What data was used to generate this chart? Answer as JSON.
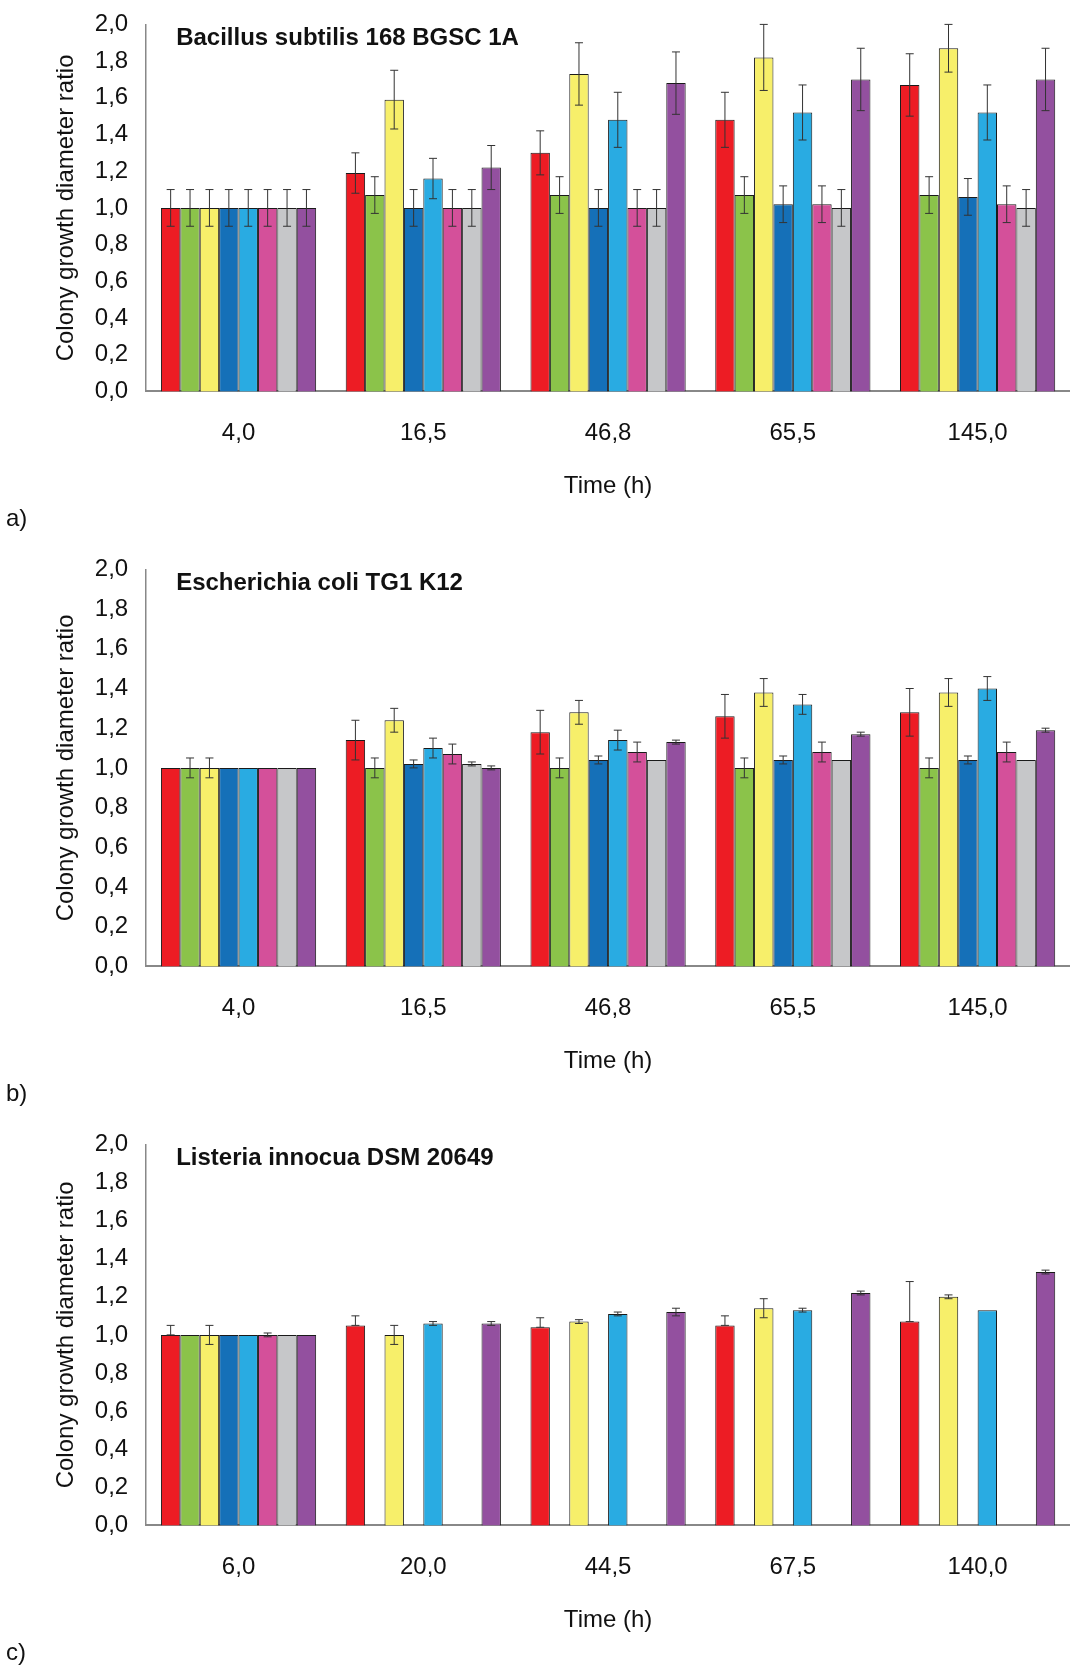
{
  "chart_data": [
    {
      "type": "bar",
      "title": "Bacillus subtilis 168 BGSC 1A",
      "xlabel": "Time (h)",
      "ylabel": "Colony growth diameter ratio",
      "annotations": [
        "a)"
      ],
      "categories": [
        "4,0",
        "16,5",
        "46,8",
        "65,5",
        "145,0"
      ],
      "ylim": [
        0,
        2
      ],
      "yticks": [
        {
          "value": 0,
          "label": "0,0"
        },
        {
          "value": 0.2,
          "label": "0,2"
        },
        {
          "value": 0.4,
          "label": "0,4"
        },
        {
          "value": 0.6,
          "label": "0,6"
        },
        {
          "value": 0.8,
          "label": "0,8"
        },
        {
          "value": 1,
          "label": "1,0"
        },
        {
          "value": 1.2,
          "label": "1,2"
        },
        {
          "value": 1.4,
          "label": "1,4"
        },
        {
          "value": 1.6,
          "label": "1,6"
        },
        {
          "value": 1.8,
          "label": "1,8"
        },
        {
          "value": 2,
          "label": "2,0"
        }
      ],
      "series": [
        {
          "color": "#ed1c24",
          "values": [
            1.0,
            1.19,
            1.3,
            1.48,
            1.67
          ],
          "errors": [
            0.1,
            0.11,
            0.12,
            0.15,
            0.17
          ]
        },
        {
          "color": "#8bc34a",
          "values": [
            1.0,
            1.07,
            1.07,
            1.07,
            1.07
          ],
          "errors": [
            0.1,
            0.1,
            0.1,
            0.1,
            0.1
          ]
        },
        {
          "color": "#f7ef6a",
          "values": [
            1.0,
            1.59,
            1.73,
            1.82,
            1.87
          ],
          "errors": [
            0.1,
            0.16,
            0.17,
            0.18,
            0.13
          ]
        },
        {
          "color": "#1570b8",
          "values": [
            1.0,
            1.0,
            1.0,
            1.02,
            1.06
          ],
          "errors": [
            0.1,
            0.1,
            0.1,
            0.1,
            0.1
          ]
        },
        {
          "color": "#29abe2",
          "values": [
            1.0,
            1.16,
            1.48,
            1.52,
            1.52
          ],
          "errors": [
            0.1,
            0.11,
            0.15,
            0.15,
            0.15
          ]
        },
        {
          "color": "#d4509a",
          "values": [
            1.0,
            1.0,
            1.0,
            1.02,
            1.02
          ],
          "errors": [
            0.1,
            0.1,
            0.1,
            0.1,
            0.1
          ]
        },
        {
          "color": "#c6c7c9",
          "values": [
            1.0,
            1.0,
            1.0,
            1.0,
            1.0
          ],
          "errors": [
            0.1,
            0.1,
            0.1,
            0.1,
            0.1
          ]
        },
        {
          "color": "#93509f",
          "values": [
            1.0,
            1.22,
            1.68,
            1.7,
            1.7
          ],
          "errors": [
            0.1,
            0.12,
            0.17,
            0.17,
            0.17
          ]
        }
      ]
    },
    {
      "type": "bar",
      "title": "Escherichia coli TG1 K12",
      "xlabel": "Time (h)",
      "ylabel": "Colony growth diameter ratio",
      "annotations": [
        "b)"
      ],
      "categories": [
        "4,0",
        "16,5",
        "46,8",
        "65,5",
        "145,0"
      ],
      "ylim": [
        0,
        2
      ],
      "yticks": [
        {
          "value": 0,
          "label": "0,0"
        },
        {
          "value": 0.2,
          "label": "0,2"
        },
        {
          "value": 0.4,
          "label": "0,4"
        },
        {
          "value": 0.6,
          "label": "0,6"
        },
        {
          "value": 0.8,
          "label": "0,8"
        },
        {
          "value": 1,
          "label": "1,0"
        },
        {
          "value": 1.2,
          "label": "1,2"
        },
        {
          "value": 1.4,
          "label": "1,4"
        },
        {
          "value": 1.6,
          "label": "1,6"
        },
        {
          "value": 1.8,
          "label": "1,8"
        },
        {
          "value": 2,
          "label": "2,0"
        }
      ],
      "series": [
        {
          "color": "#ed1c24",
          "values": [
            1.0,
            1.14,
            1.18,
            1.26,
            1.28
          ],
          "errors": [
            null,
            0.1,
            0.11,
            0.11,
            0.12
          ]
        },
        {
          "color": "#8bc34a",
          "values": [
            1.0,
            1.0,
            1.0,
            1.0,
            1.0
          ],
          "errors": [
            0.05,
            0.05,
            0.05,
            0.05,
            0.05
          ]
        },
        {
          "color": "#f7ef6a",
          "values": [
            1.0,
            1.24,
            1.28,
            1.38,
            1.38
          ],
          "errors": [
            0.05,
            0.06,
            0.06,
            0.07,
            0.07
          ]
        },
        {
          "color": "#1570b8",
          "values": [
            1.0,
            1.02,
            1.04,
            1.04,
            1.04
          ],
          "errors": [
            null,
            0.02,
            0.02,
            0.02,
            0.02
          ]
        },
        {
          "color": "#29abe2",
          "values": [
            1.0,
            1.1,
            1.14,
            1.32,
            1.4
          ],
          "errors": [
            null,
            0.05,
            0.05,
            0.05,
            0.06
          ]
        },
        {
          "color": "#d4509a",
          "values": [
            1.0,
            1.07,
            1.08,
            1.08,
            1.08
          ],
          "errors": [
            null,
            0.05,
            0.05,
            0.05,
            0.05
          ]
        },
        {
          "color": "#c6c7c9",
          "values": [
            1.0,
            1.02,
            1.04,
            1.04,
            1.04
          ],
          "errors": [
            null,
            0.01,
            null,
            null,
            null
          ]
        },
        {
          "color": "#93509f",
          "values": [
            1.0,
            1.0,
            1.13,
            1.17,
            1.19
          ],
          "errors": [
            null,
            0.01,
            0.01,
            0.01,
            0.01
          ]
        }
      ]
    },
    {
      "type": "bar",
      "title": "Listeria innocua DSM 20649",
      "xlabel": "Time (h)",
      "ylabel": "Colony growth diameter ratio",
      "annotations": [
        "c)"
      ],
      "categories": [
        "6,0",
        "20,0",
        "44,5",
        "67,5",
        "140,0"
      ],
      "ylim": [
        0,
        2
      ],
      "yticks": [
        {
          "value": 0,
          "label": "0,0"
        },
        {
          "value": 0.2,
          "label": "0,2"
        },
        {
          "value": 0.4,
          "label": "0,4"
        },
        {
          "value": 0.6,
          "label": "0,6"
        },
        {
          "value": 0.8,
          "label": "0,8"
        },
        {
          "value": 1,
          "label": "1,0"
        },
        {
          "value": 1.2,
          "label": "1,2"
        },
        {
          "value": 1.4,
          "label": "1,4"
        },
        {
          "value": 1.6,
          "label": "1,6"
        },
        {
          "value": 1.8,
          "label": "1,8"
        },
        {
          "value": 2,
          "label": "2,0"
        }
      ],
      "series": [
        {
          "color": "#ed1c24",
          "values": [
            1.0,
            1.05,
            1.04,
            1.05,
            1.07
          ],
          "errors": [
            [
              1.0,
              1.05
            ],
            [
              1.05,
              1.1
            ],
            [
              1.04,
              1.09
            ],
            [
              1.05,
              1.1
            ],
            [
              1.07,
              1.28
            ]
          ]
        },
        {
          "color": "#8bc34a",
          "values": [
            1.0,
            null,
            null,
            null,
            null
          ]
        },
        {
          "color": "#f7ef6a",
          "values": [
            1.0,
            1.0,
            1.07,
            1.14,
            1.2
          ],
          "errors": [
            0.05,
            0.05,
            0.01,
            0.05,
            0.01
          ]
        },
        {
          "color": "#1570b8",
          "values": [
            1.0,
            null,
            null,
            null,
            null
          ]
        },
        {
          "color": "#29abe2",
          "values": [
            1.0,
            1.06,
            1.11,
            1.13,
            1.13
          ],
          "errors": [
            null,
            0.01,
            0.01,
            0.01,
            null
          ]
        },
        {
          "color": "#d4509a",
          "values": [
            1.0,
            null,
            null,
            null,
            null
          ],
          "errors": [
            0.01,
            null,
            null,
            null,
            null
          ]
        },
        {
          "color": "#c6c7c9",
          "values": [
            1.0,
            null,
            null,
            null,
            null
          ]
        },
        {
          "color": "#93509f",
          "values": [
            1.0,
            1.06,
            1.12,
            1.22,
            1.33
          ],
          "errors": [
            null,
            0.01,
            0.02,
            0.01,
            0.01
          ]
        }
      ]
    }
  ]
}
